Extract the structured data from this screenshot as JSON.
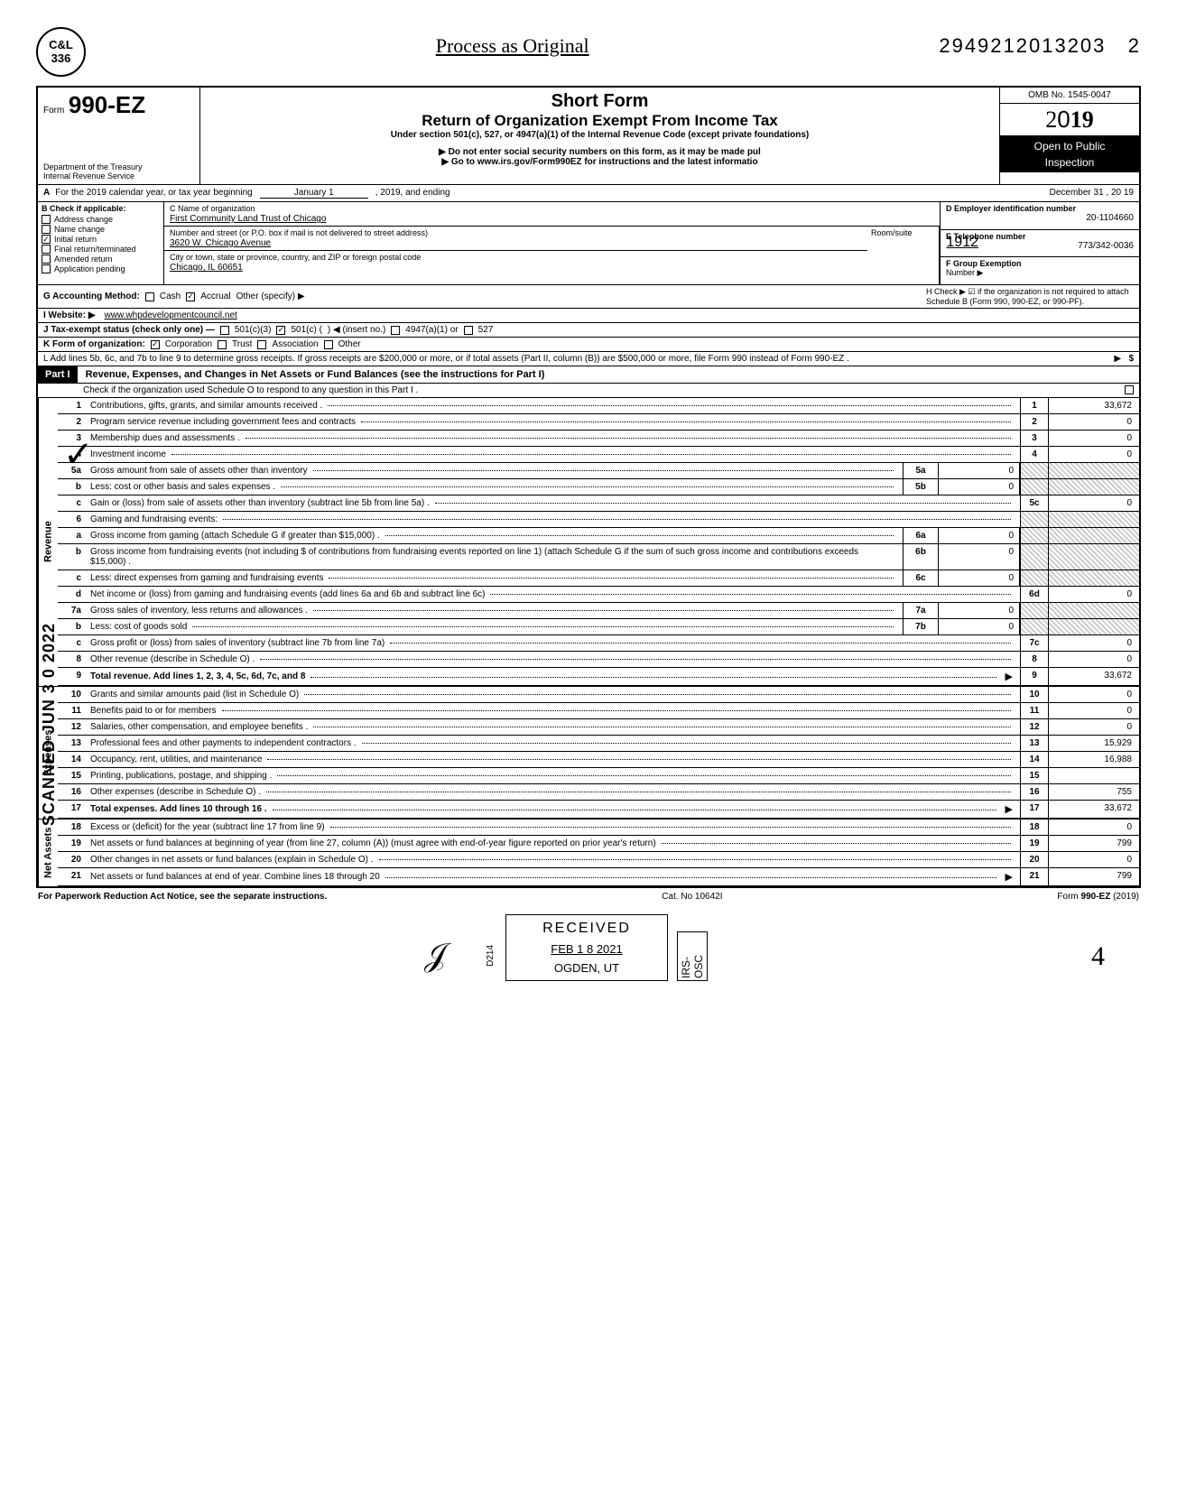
{
  "top": {
    "badge_line1": "C&L",
    "badge_line2": "336",
    "process_title": "Process as Original",
    "top_number": "2949212013203",
    "top_number_suffix": "2"
  },
  "header": {
    "form_label": "Form",
    "form_number": "990-EZ",
    "dept": "Department of the Treasury\nInternal Revenue Service",
    "short_form": "Short Form",
    "return_title": "Return of Organization Exempt From Income Tax",
    "subtitle": "Under section 501(c), 527, or 4947(a)(1) of the Internal Revenue Code (except private foundations)",
    "warn": "▶ Do not enter social security numbers on this form, as it may be made pul",
    "goto": "▶ Go to www.irs.gov/Form990EZ for instructions and the latest informatio",
    "omb": "OMB No. 1545-0047",
    "year": "2019",
    "open": "Open to Public",
    "inspection": "Inspection",
    "under_1912": "1912"
  },
  "row_a": {
    "label_a": "A",
    "text": "For the 2019 calendar year, or tax year beginning",
    "mid1": "January 1",
    "mid2": ", 2019, and ending",
    "end": "December 31     , 20  19"
  },
  "col_b": {
    "label": "B  Check if applicable:",
    "items": [
      {
        "label": "Address change",
        "checked": false
      },
      {
        "label": "Name change",
        "checked": false
      },
      {
        "label": "Initial return",
        "checked": true
      },
      {
        "label": "Final return/terminated",
        "checked": false
      },
      {
        "label": "Amended return",
        "checked": false
      },
      {
        "label": "Application pending",
        "checked": false
      }
    ]
  },
  "col_c": {
    "name_label": "C  Name of organization",
    "name_val": "First Community Land Trust of Chicago",
    "street_label": "Number and street (or P.O. box if mail is not delivered to street address)",
    "street_val": "3620 W. Chicago Avenue",
    "city_label": "City or town, state or province, country, and ZIP or foreign postal code",
    "city_val": "Chicago, IL  60651",
    "room_label": "Room/suite"
  },
  "col_def": {
    "d_label": "D Employer identification number",
    "d_val": "20-1104660",
    "e_label": "E Telephone number",
    "e_val": "773/342-0036",
    "f_label": "F Group Exemption",
    "f_label2": "Number ▶"
  },
  "row_g": {
    "label": "G  Accounting Method:",
    "cash": "Cash",
    "accrual": "Accrual",
    "other": "Other (specify) ▶"
  },
  "row_h": {
    "text": "H  Check ▶ ☑ if the organization is not required to attach Schedule B (Form 990, 990-EZ, or 990-PF)."
  },
  "row_i": {
    "label": "I  Website: ▶",
    "val": "www.whpdevelopmentcouncil.net"
  },
  "row_j": {
    "label": "J  Tax-exempt status (check only one) —",
    "c3": "501(c)(3)",
    "c": "501(c) (",
    "insert": ") ◀ (insert no.)",
    "a1": "4947(a)(1) or",
    "s527": "527"
  },
  "row_k": {
    "label": "K  Form of organization:",
    "corp": "Corporation",
    "trust": "Trust",
    "assoc": "Association",
    "other": "Other"
  },
  "row_l": {
    "text": "L  Add lines 5b, 6c, and 7b to line 9 to determine gross receipts. If gross receipts are $200,000 or more, or if total assets (Part II, column (B)) are $500,000 or more, file Form 990 instead of Form 990-EZ .",
    "arrow": "▶",
    "dollar": "$"
  },
  "part1": {
    "tag": "Part I",
    "title": "Revenue, Expenses, and Changes in Net Assets or Fund Balances (see the instructions for Part I)",
    "sub": "Check if the organization used Schedule O to respond to any question in this Part I ."
  },
  "revenue_label": "Revenue",
  "expenses_label": "Expenses",
  "netassets_label": "Net Assets",
  "lines": {
    "1": {
      "n": "1",
      "d": "Contributions, gifts, grants, and similar amounts received .",
      "en": "1",
      "ev": "33,672"
    },
    "2": {
      "n": "2",
      "d": "Program service revenue including government fees and contracts",
      "en": "2",
      "ev": "0"
    },
    "3": {
      "n": "3",
      "d": "Membership dues and assessments .",
      "en": "3",
      "ev": "0"
    },
    "4": {
      "n": "4",
      "d": "Investment income",
      "en": "4",
      "ev": "0"
    },
    "5a": {
      "n": "5a",
      "d": "Gross amount from sale of assets other than inventory",
      "mn": "5a",
      "mv": "0"
    },
    "5b": {
      "n": "b",
      "d": "Less: cost or other basis and sales expenses .",
      "mn": "5b",
      "mv": "0"
    },
    "5c": {
      "n": "c",
      "d": "Gain or (loss) from sale of assets other than inventory (subtract line 5b from line 5a) .",
      "en": "5c",
      "ev": "0"
    },
    "6": {
      "n": "6",
      "d": "Gaming and fundraising events:"
    },
    "6a": {
      "n": "a",
      "d": "Gross income from gaming (attach Schedule G if greater than $15,000) .",
      "mn": "6a",
      "mv": "0"
    },
    "6b": {
      "n": "b",
      "d": "Gross income from fundraising events (not including  $                   of contributions from fundraising events reported on line 1) (attach Schedule G if the sum of such gross income and contributions exceeds $15,000) .",
      "mn": "6b",
      "mv": "0",
      "of": "0"
    },
    "6c": {
      "n": "c",
      "d": "Less: direct expenses from gaming and fundraising events",
      "mn": "6c",
      "mv": "0"
    },
    "6d": {
      "n": "d",
      "d": "Net income or (loss) from gaming and fundraising events (add lines 6a and 6b and subtract line 6c)",
      "en": "6d",
      "ev": "0"
    },
    "7a": {
      "n": "7a",
      "d": "Gross sales of inventory, less returns and allowances .",
      "mn": "7a",
      "mv": "0"
    },
    "7b": {
      "n": "b",
      "d": "Less: cost of goods sold",
      "mn": "7b",
      "mv": "0"
    },
    "7c": {
      "n": "c",
      "d": "Gross profit or (loss) from sales of inventory (subtract line 7b from line 7a)",
      "en": "7c",
      "ev": "0"
    },
    "8": {
      "n": "8",
      "d": "Other revenue (describe in Schedule O) .",
      "en": "8",
      "ev": "0"
    },
    "9": {
      "n": "9",
      "d": "Total revenue. Add lines 1, 2, 3, 4, 5c, 6d, 7c, and 8",
      "en": "9",
      "ev": "33,672",
      "bold": true,
      "arrow": true
    },
    "10": {
      "n": "10",
      "d": "Grants and similar amounts paid (list in Schedule O)",
      "en": "10",
      "ev": "0"
    },
    "11": {
      "n": "11",
      "d": "Benefits paid to or for members",
      "en": "11",
      "ev": "0"
    },
    "12": {
      "n": "12",
      "d": "Salaries, other compensation, and employee benefits .",
      "en": "12",
      "ev": "0"
    },
    "13": {
      "n": "13",
      "d": "Professional fees and other payments to independent contractors .",
      "en": "13",
      "ev": "15,929"
    },
    "14": {
      "n": "14",
      "d": "Occupancy, rent, utilities, and maintenance",
      "en": "14",
      "ev": "16,988"
    },
    "15": {
      "n": "15",
      "d": "Printing, publications, postage, and shipping .",
      "en": "15",
      "ev": ""
    },
    "16": {
      "n": "16",
      "d": "Other expenses (describe in Schedule O) .",
      "en": "16",
      "ev": "755"
    },
    "17": {
      "n": "17",
      "d": "Total expenses. Add lines 10 through 16 .",
      "en": "17",
      "ev": "33,672",
      "bold": true,
      "arrow": true
    },
    "18": {
      "n": "18",
      "d": "Excess or (deficit) for the year (subtract line 17 from line 9)",
      "en": "18",
      "ev": "0"
    },
    "19": {
      "n": "19",
      "d": "Net assets or fund balances at beginning of year (from line 27, column (A)) (must agree with end-of-year figure reported on prior year's return)",
      "en": "19",
      "ev": "799"
    },
    "20": {
      "n": "20",
      "d": "Other changes in net assets or fund balances (explain in Schedule O) .",
      "en": "20",
      "ev": "0"
    },
    "21": {
      "n": "21",
      "d": "Net assets or fund balances at end of year. Combine lines 18 through 20",
      "en": "21",
      "ev": "799",
      "arrow": true
    }
  },
  "footer": {
    "left": "For Paperwork Reduction Act Notice, see the separate instructions.",
    "cat": "Cat. No  10642I",
    "right": "Form 990-EZ (2019)"
  },
  "received": {
    "r1": "RECEIVED",
    "r2": "FEB 1 8 2021",
    "r3": "OGDEN, UT",
    "irs": "IRS-OSC",
    "d214": "D214"
  },
  "scanned_side": "SCANNED JUN 3 0 2022",
  "colors": {
    "black": "#000000",
    "white": "#ffffff",
    "shade": "#cccccc"
  }
}
